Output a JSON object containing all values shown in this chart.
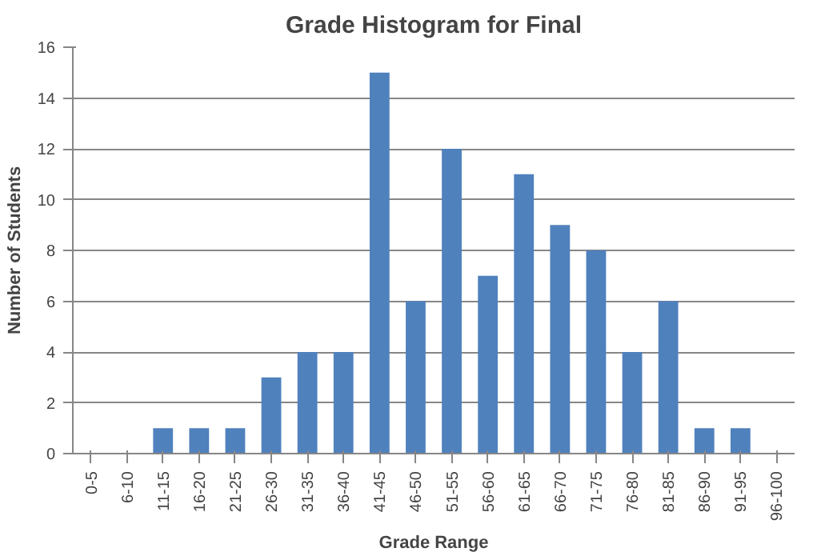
{
  "chart_data": {
    "type": "bar",
    "title": "Grade Histogram for Final",
    "xlabel": "Grade Range",
    "ylabel": "Number of Students",
    "categories": [
      "0-5",
      "6-10",
      "11-15",
      "16-20",
      "21-25",
      "26-30",
      "31-35",
      "36-40",
      "41-45",
      "46-50",
      "51-55",
      "56-60",
      "61-65",
      "66-70",
      "71-75",
      "76-80",
      "81-85",
      "86-90",
      "91-95",
      "96-100"
    ],
    "values": [
      0,
      0,
      1,
      1,
      1,
      3,
      4,
      4,
      15,
      6,
      12,
      7,
      11,
      9,
      8,
      4,
      6,
      1,
      1,
      0
    ],
    "color": "#4f81bd",
    "ylim": [
      0,
      16
    ],
    "yticks": [
      0,
      2,
      4,
      6,
      8,
      10,
      12,
      14,
      16
    ],
    "grid": "y"
  }
}
